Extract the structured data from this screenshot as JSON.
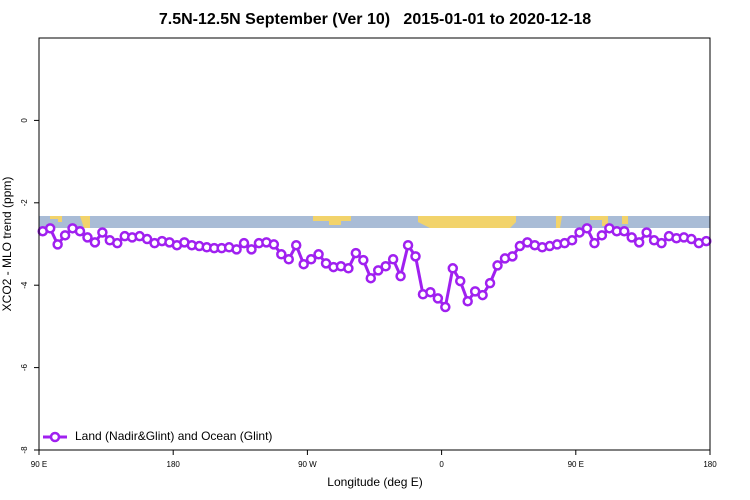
{
  "chart_data": {
    "type": "line",
    "title": "7.5N-12.5N September (Ver 10)   2015-01-01 to 2020-12-18",
    "x_label": "Longitude (deg E)",
    "y_label": "XCO2 - MLO trend (ppm)",
    "xlim": [
      90,
      540
    ],
    "xticks": [
      {
        "value": 90,
        "label": "90 E"
      },
      180,
      {
        "value": 270,
        "label": "90 W"
      },
      {
        "value": 360,
        "label": "0"
      },
      {
        "value": 450,
        "label": "90 E"
      },
      {
        "value": 540,
        "label": "180"
      }
    ],
    "ylim": [
      -8,
      2
    ],
    "yticks": [
      -8,
      -6,
      -4,
      -2,
      0
    ],
    "legend": "bottom-left",
    "x": [
      92.5,
      97.5,
      102.5,
      107.5,
      112.5,
      117.5,
      122.5,
      127.5,
      132.5,
      137.5,
      142.5,
      147.5,
      152.5,
      157.5,
      162.5,
      167.5,
      172.5,
      177.5,
      182.5,
      187.5,
      192.5,
      197.5,
      202.5,
      207.5,
      212.5,
      217.5,
      222.5,
      227.5,
      232.5,
      237.5,
      242.5,
      247.5,
      252.5,
      257.5,
      262.5,
      267.5,
      272.5,
      277.5,
      282.5,
      287.5,
      292.5,
      297.5,
      302.5,
      307.5,
      312.5,
      317.5,
      322.5,
      327.5,
      332.5,
      337.5,
      342.5,
      347.5,
      352.5,
      357.5,
      362.5,
      367.5,
      372.5,
      377.5,
      382.5,
      387.5,
      392.5,
      397.5,
      402.5,
      407.5,
      412.5,
      417.5,
      422.5,
      427.5,
      432.5,
      437.5,
      442.5,
      447.5,
      452.5,
      457.5,
      462.5,
      467.5,
      472.5,
      477.5,
      482.5,
      487.5,
      492.5,
      497.5,
      502.5,
      507.5,
      512.5,
      517.5,
      522.5,
      527.5,
      532.5,
      537.5
    ],
    "series": [
      {
        "name": "Land (Nadir&Glint) and Ocean (Glint)",
        "color": "#a020f0",
        "values": [
          -2.69,
          -2.62,
          -3.01,
          -2.79,
          -2.62,
          -2.69,
          -2.84,
          -2.96,
          -2.72,
          -2.91,
          -2.98,
          -2.81,
          -2.84,
          -2.81,
          -2.88,
          -2.98,
          -2.93,
          -2.96,
          -3.03,
          -2.96,
          -3.03,
          -3.05,
          -3.08,
          -3.1,
          -3.1,
          -3.08,
          -3.13,
          -2.98,
          -3.13,
          -2.98,
          -2.96,
          -3.01,
          -3.25,
          -3.37,
          -3.03,
          -3.49,
          -3.37,
          -3.25,
          -3.47,
          -3.56,
          -3.54,
          -3.59,
          -3.22,
          -3.39,
          -3.83,
          -3.64,
          -3.54,
          -3.37,
          -3.78,
          -3.03,
          -3.3,
          -4.22,
          -4.17,
          -4.32,
          -4.53,
          -3.59,
          -3.9,
          -4.39,
          -4.15,
          -4.24,
          -3.95,
          -3.52,
          -3.35,
          -3.3,
          -3.05,
          -2.96,
          -3.03,
          -3.08,
          -3.05,
          -3.01,
          -2.98,
          -2.91,
          -2.72,
          -2.62,
          -2.98,
          -2.79,
          -2.62,
          -2.69,
          -2.69,
          -2.84,
          -2.96,
          -2.72,
          -2.91,
          -2.98,
          -2.81,
          -2.86,
          -2.84,
          -2.88,
          -2.98,
          -2.93
        ]
      }
    ]
  }
}
